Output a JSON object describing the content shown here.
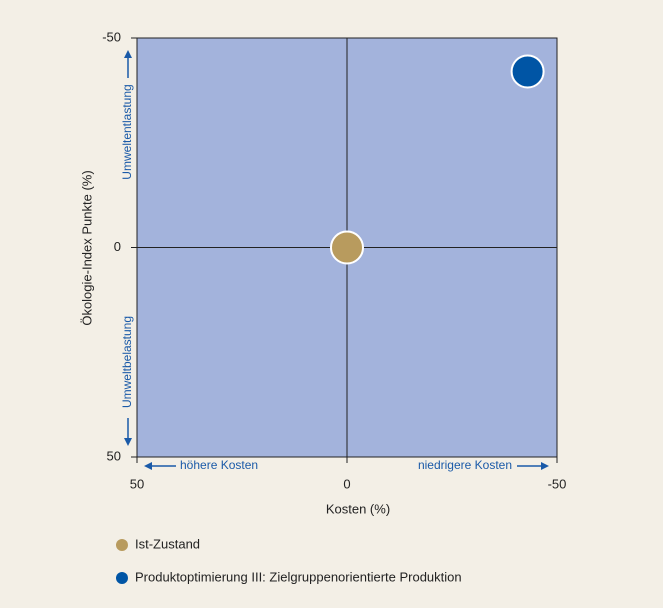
{
  "chart_data": {
    "type": "scatter",
    "xlabel": "Kosten (%)",
    "ylabel": "Ökologie-Index Punkte (%)",
    "xlim": [
      50,
      -50
    ],
    "xticks": [
      50,
      0,
      -50
    ],
    "ylim": [
      50,
      -50
    ],
    "yticks": [
      -50,
      0,
      50
    ],
    "annotations": {
      "top": "Umweltentlastung",
      "bottom": "Umweltbelastung",
      "left": "höhere Kosten",
      "right": "niedrigere Kosten"
    },
    "series": [
      {
        "name": "Ist-Zustand",
        "color": "#b89b5e",
        "x": [
          0
        ],
        "values": [
          0
        ]
      },
      {
        "name": "Produktoptimierung III: Zielgruppenorientierte Produktion",
        "color": "#0055a5",
        "x": [
          -43
        ],
        "values": [
          -42
        ]
      }
    ]
  }
}
